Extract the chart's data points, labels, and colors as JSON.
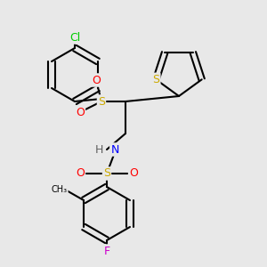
{
  "bg_color": "#e8e8e8",
  "bond_color": "#000000",
  "line_width": 1.5,
  "atoms": {
    "Cl": {
      "color": "#00cc00",
      "fontsize": 9
    },
    "S": {
      "color": "#ccaa00",
      "fontsize": 9
    },
    "O": {
      "color": "#ff0000",
      "fontsize": 9
    },
    "N": {
      "color": "#0000ff",
      "fontsize": 9
    },
    "H": {
      "color": "#606060",
      "fontsize": 9
    },
    "F": {
      "color": "#cc00cc",
      "fontsize": 9
    },
    "C": {
      "color": "#000000",
      "fontsize": 9
    }
  }
}
